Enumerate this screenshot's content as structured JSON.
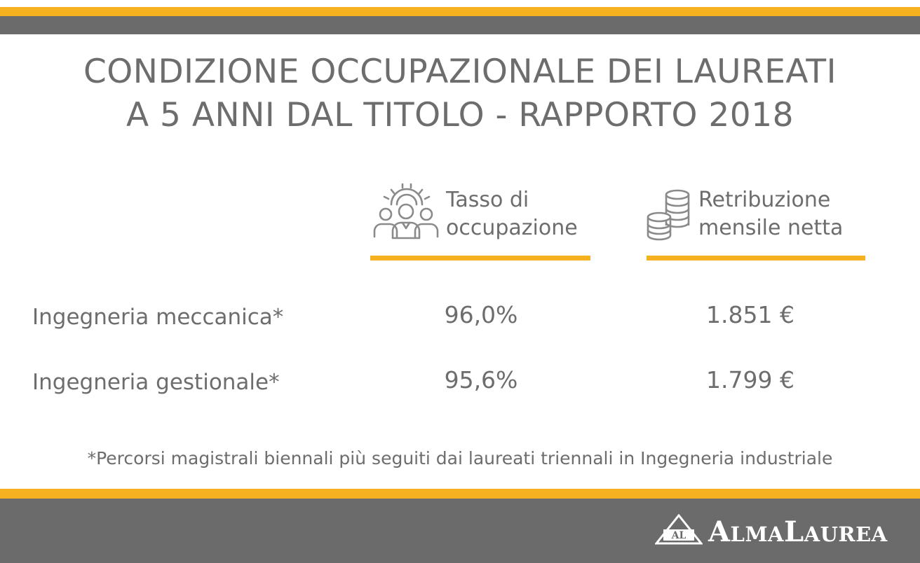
{
  "title": {
    "line1": "CONDIZIONE OCCUPAZIONALE DEI LAUREATI",
    "line2": "A 5 ANNI DAL TITOLO - RAPPORTO 2018"
  },
  "columns": {
    "occupation": {
      "line1": "Tasso di",
      "line2": "occupazione",
      "icon": "people-gear-icon"
    },
    "salary": {
      "line1": "Retribuzione",
      "line2": "mensile netta",
      "icon": "coins-stack-icon"
    }
  },
  "rows": [
    {
      "label": "Ingegneria meccanica*",
      "occupation": "96,0%",
      "salary": "1.851 €"
    },
    {
      "label": "Ingegneria gestionale*",
      "occupation": "95,6%",
      "salary": "1.799 €"
    }
  ],
  "footnote": "*Percorsi magistrali biennali più seguiti dai laureati triennali in Ingegneria industriale",
  "logo": {
    "mark_text": "AL",
    "word_parts": [
      "A",
      "LMA",
      "L",
      "AUREA"
    ]
  },
  "colors": {
    "accent": "#f5b11f",
    "band": "#6b6b6b",
    "text": "#6d6d6d"
  }
}
